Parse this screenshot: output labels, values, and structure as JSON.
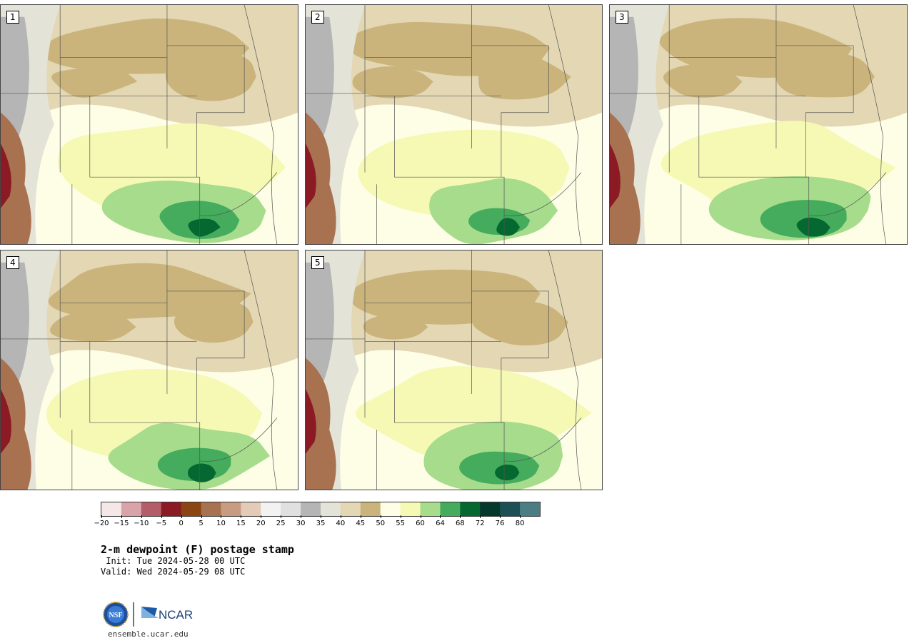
{
  "map": {
    "title": "2-m dewpoint (F) postage stamp",
    "init": " Init: Tue 2024-05-28 00 UTC",
    "valid": "Valid: Wed 2024-05-29 08 UTC",
    "site": "ensemble.ucar.edu",
    "logo_text": {
      "nsf": "NSF",
      "ncar": "NCAR"
    },
    "panels": [
      {
        "label": "1",
        "moisture": 0.75
      },
      {
        "label": "2",
        "moisture": 0.55
      },
      {
        "label": "3",
        "moisture": 0.85
      },
      {
        "label": "4",
        "moisture": 0.7
      },
      {
        "label": "5",
        "moisture": 0.72
      }
    ],
    "colorbar": {
      "colors": [
        "#f5e6e8",
        "#d8a4aa",
        "#b45c68",
        "#8b1a24",
        "#8b4513",
        "#a87250",
        "#c79c80",
        "#e3cbb8",
        "#f2f2f2",
        "#e0e0e0",
        "#b5b5b5",
        "#e3e3d8",
        "#e3d7b4",
        "#cbb47c",
        "#fefee6",
        "#f5f9b4",
        "#a6dc8c",
        "#44ac5c",
        "#046830",
        "#04382c",
        "#1c5054",
        "#4c7c84"
      ],
      "ticks": [
        "−20",
        "−15",
        "−10",
        "−5",
        "0",
        "5",
        "10",
        "15",
        "20",
        "25",
        "30",
        "35",
        "40",
        "45",
        "50",
        "55",
        "60",
        "64",
        "68",
        "72",
        "76",
        "80"
      ]
    },
    "palette": {
      "lowGreen": "#a6dc8c",
      "midGreen": "#44ac5c",
      "darkGreen": "#046830",
      "paleYellow": "#fefee6",
      "yellow": "#f5f9b4",
      "tan": "#cbb47c",
      "lightTan": "#e3d7b4",
      "gray": "#e3e3d8",
      "midGray": "#b5b5b5",
      "darkGray": "#8a8a8a",
      "brown": "#a87250",
      "darkBrown": "#8b1a24",
      "border": "#555555"
    }
  }
}
